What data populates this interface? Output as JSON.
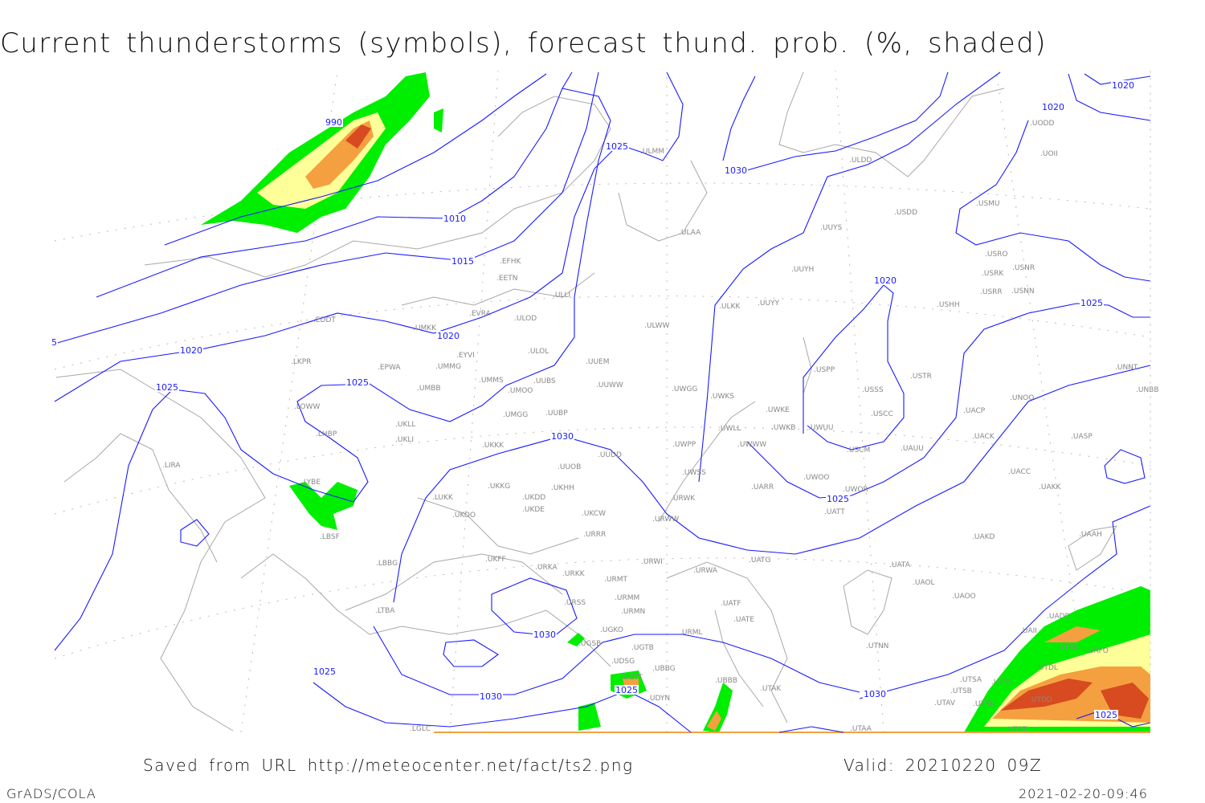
{
  "title": "Current thunderstorms (symbols), forecast thund. prob. (%, shaded)",
  "footer": {
    "saved": "Saved from URL http://meteocenter.net/fact/ts2.png",
    "valid": "Valid: 20210220 09Z",
    "software": "GrADS/COLA",
    "timestamp": "2021-02-20-09:46"
  },
  "colors": {
    "isobar": "#1a1aff",
    "coastline": "#a8a8a8",
    "prob_low": "#00ee00",
    "prob_mid": "#ffff99",
    "prob_high": "#f4a040",
    "prob_max": "#d84a20"
  },
  "isobar_labels": [
    "990",
    "1010",
    "1015",
    "1020",
    "1020",
    "1025",
    "1025",
    "1025",
    "1030",
    "1020",
    "1020",
    "1020",
    "1025",
    "1030",
    "1025",
    "1030",
    "1030",
    "1025",
    "1025",
    "1030",
    "1025",
    "5"
  ],
  "stations": [
    "ULMM",
    "ULDD",
    "UODD",
    "UOII",
    "USDD",
    "USMU",
    "UUYS",
    "ULAA",
    "USRO",
    "USRK",
    "USNR",
    "USRR",
    "USNN",
    "USHH",
    "UUYH",
    "ULKK",
    "UUYY",
    "EFHK",
    "EETN",
    "ULLI",
    "EVRA",
    "ULOD",
    "ULWW",
    "EDDT",
    "UMKK",
    "EYVI",
    "ULOL",
    "UUEM",
    "LKPR",
    "EPWA",
    "UMMG",
    "USPP",
    "USTR",
    "UMMS",
    "UMOO",
    "UUBS",
    "UUWW",
    "UWGG",
    "UMBB",
    "USSS",
    "UWKS",
    "UNNT",
    "UNBB",
    "UNOO",
    "LOWW",
    "UWKE",
    "UWKB",
    "UWUU",
    "USCC",
    "UACP",
    "UMGG",
    "UUBP",
    "UKLL",
    "LHBP",
    "UKLI",
    "UACK",
    "UASP",
    "UWLL",
    "UWWW",
    "UKKK",
    "UWPP",
    "UUDD",
    "USCM",
    "UAUU",
    "UUOB",
    "LIRA",
    "UWSS",
    "UACC",
    "UAKK",
    "LYBE",
    "UKHH",
    "UKKG",
    "UKDD",
    "UARR",
    "UWOO",
    "UWOR",
    "UATT",
    "LUKK",
    "UKOO",
    "UKDE",
    "UKCW",
    "URWK",
    "URWW",
    "URRR",
    "LBSF",
    "UAKD",
    "UAAH",
    "UKFF",
    "URKA",
    "URKK",
    "URWI",
    "UATG",
    "URWA",
    "UATA",
    "LBBG",
    "URMT",
    "UAOL",
    "UAOO",
    "URSS",
    "URMM",
    "UATF",
    "URMN",
    "LTBA",
    "UATE",
    "UADD",
    "UAII",
    "UGKO",
    "URML",
    "UGSB",
    "UTNN",
    "UGTB",
    "UTKN",
    "UAFO",
    "UDSG",
    "UTDL",
    "UBBG",
    "UGTT",
    "UTSA",
    "UTSS",
    "UBBB",
    "UTSB",
    "UTAK",
    "UDYN",
    "UTAV",
    "UTSK",
    "UTDD",
    "UTAA",
    "UTST",
    "LGLC"
  ]
}
